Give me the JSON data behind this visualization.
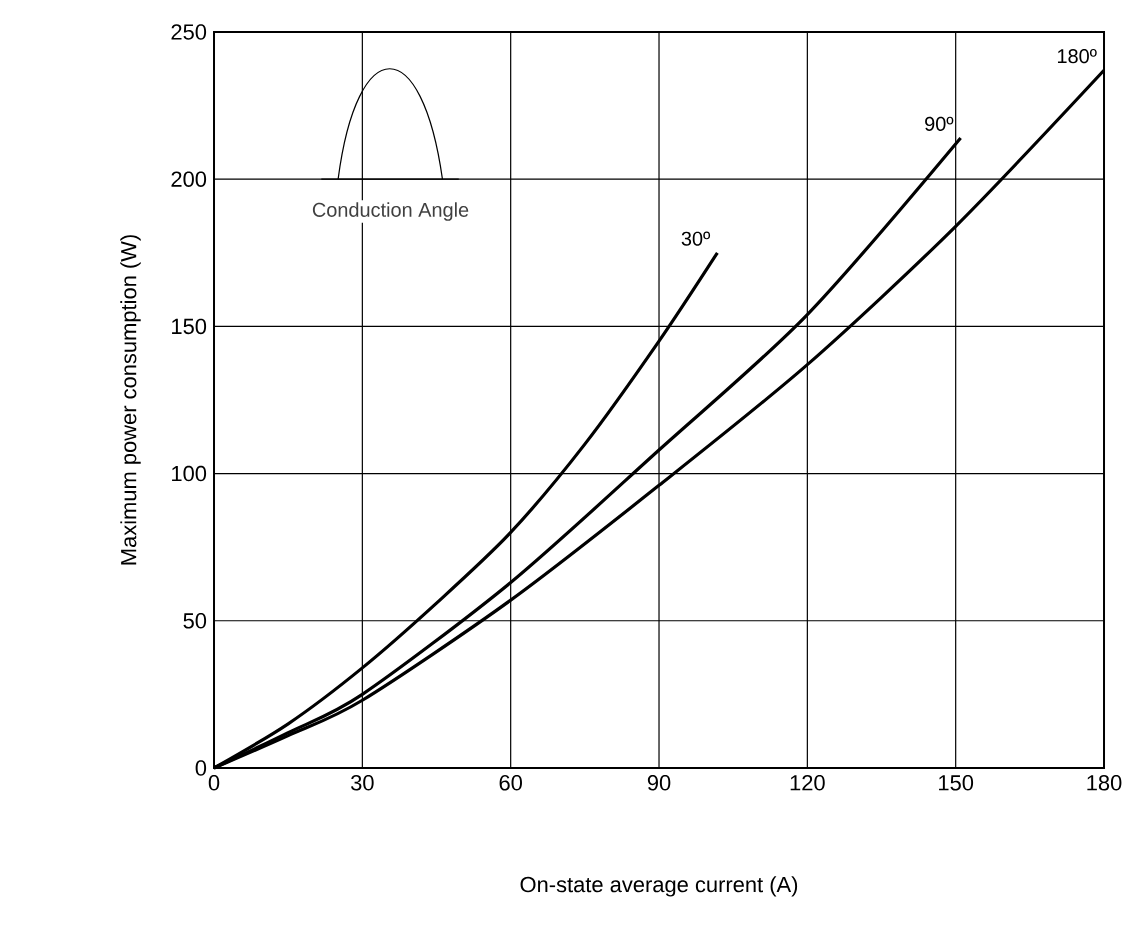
{
  "chart_data": {
    "type": "line",
    "xlabel": "On-state average current (A)",
    "ylabel": "Maximum power consumption (W)",
    "xlim": [
      0,
      180
    ],
    "ylim": [
      0,
      250
    ],
    "xticks": [
      0,
      30,
      60,
      90,
      120,
      150,
      180
    ],
    "yticks": [
      0,
      50,
      100,
      150,
      200,
      250
    ],
    "grid": true,
    "marker": "none",
    "line_style": "solid",
    "annotations": [
      "Conduction Angle"
    ],
    "series": [
      {
        "name": "30º",
        "color": "#000000",
        "x": [
          0,
          15,
          30,
          45,
          60,
          75,
          90,
          101.8
        ],
        "values": [
          0,
          15,
          34,
          56,
          80,
          110,
          145,
          175
        ]
      },
      {
        "name": "90º",
        "color": "#000000",
        "x": [
          0,
          15,
          30,
          60,
          90,
          120,
          151
        ],
        "values": [
          0,
          12,
          25,
          63,
          108,
          154,
          214
        ]
      },
      {
        "name": "180º",
        "color": "#000000",
        "x": [
          0,
          15,
          30,
          60,
          90,
          120,
          150,
          180
        ],
        "values": [
          0,
          11,
          23,
          57,
          96,
          137,
          184,
          237
        ]
      }
    ]
  }
}
